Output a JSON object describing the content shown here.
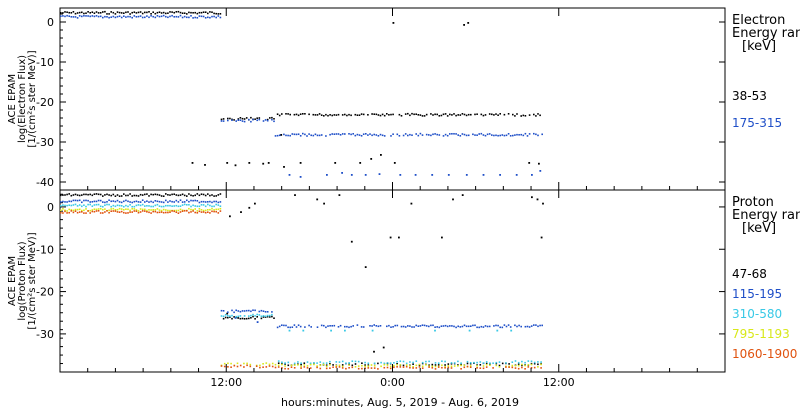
{
  "x_axis": {
    "ticks": [
      "12:00",
      "0:00",
      "12:00"
    ],
    "label": "hours:minutes, Aug.  5, 2019 - Aug.  6, 2019"
  },
  "colors": {
    "black": "#000000",
    "blue": "#1f4fc8",
    "cyan": "#39c9e6",
    "yellow": "#d8e81a",
    "orange": "#e0520e",
    "green": "#2fb84a"
  },
  "chart_data": [
    {
      "type": "scatter",
      "panel": "electron",
      "ylabel": [
        "ACE EPAM",
        "log(Electron Flux)",
        "[1/(cm²s ster MeV)]"
      ],
      "ylim": [
        -42,
        3.5
      ],
      "xlim_hours": [
        0,
        48
      ],
      "yticks": [
        "0",
        "-10",
        "-20",
        "-30",
        "-40"
      ],
      "ytick_values": [
        0,
        -10,
        -20,
        -30,
        -40
      ],
      "legend_title": [
        "Electron",
        "Energy ran",
        "[keV]"
      ],
      "series": [
        {
          "name": "38-53",
          "color": "black",
          "segments": [
            {
              "x0": 0,
              "x1": 11.6,
              "y": 2.5
            },
            {
              "x0": 11.6,
              "x1": 15.5,
              "y": -24
            },
            {
              "x0": 15.5,
              "x1": 34.8,
              "y": -23
            }
          ],
          "points": [
            [
              9.5,
              -35
            ],
            [
              10.4,
              -35.5
            ],
            [
              12.0,
              -35
            ],
            [
              12.6,
              -35.6
            ],
            [
              13.6,
              -35
            ],
            [
              14.6,
              -35.2
            ],
            [
              15.0,
              -35
            ],
            [
              16.1,
              -36
            ],
            [
              17.3,
              -35
            ],
            [
              19.8,
              -35
            ],
            [
              21.6,
              -35
            ],
            [
              24.1,
              -35
            ],
            [
              24.0,
              0
            ],
            [
              29.1,
              -0.5
            ],
            [
              29.4,
              0
            ],
            [
              33.8,
              -35
            ],
            [
              34.5,
              -35.2
            ],
            [
              15.9,
              -28
            ],
            [
              22.4,
              -34
            ],
            [
              23.1,
              -33
            ]
          ]
        },
        {
          "name": "175-315",
          "color": "blue",
          "segments": [
            {
              "x0": 0,
              "x1": 11.6,
              "y": 1.5
            },
            {
              "x0": 11.6,
              "x1": 15.5,
              "y": -24.5
            },
            {
              "x0": 15.5,
              "x1": 34.8,
              "y": -28
            }
          ],
          "points": [
            [
              16.5,
              -38
            ],
            [
              17.3,
              -38.5
            ],
            [
              19.2,
              -38
            ],
            [
              20.3,
              -37.5
            ],
            [
              21.0,
              -38
            ],
            [
              22.0,
              -38
            ],
            [
              23.0,
              -37.8
            ],
            [
              24.5,
              -38
            ],
            [
              25.6,
              -38
            ],
            [
              26.8,
              -38
            ],
            [
              28.0,
              -38
            ],
            [
              29.3,
              -38
            ],
            [
              30.5,
              -38
            ],
            [
              31.7,
              -38
            ],
            [
              32.9,
              -38
            ],
            [
              34.0,
              -38
            ],
            [
              34.6,
              -37
            ]
          ]
        }
      ]
    },
    {
      "type": "scatter",
      "panel": "proton",
      "ylabel": [
        "ACE EPAM",
        "log(Proton Flux)",
        "[1/(cm²s ster MeV)]"
      ],
      "ylim": [
        -39,
        4
      ],
      "xlim_hours": [
        0,
        48
      ],
      "yticks": [
        "0",
        "-10",
        "-20",
        "-30"
      ],
      "ytick_values": [
        0,
        -10,
        -20,
        -30
      ],
      "legend_title": [
        "Proton",
        "Energy ran",
        "[keV]"
      ],
      "series": [
        {
          "name": "47-68",
          "color": "black",
          "segments": [
            {
              "x0": 0,
              "x1": 11.6,
              "y": 3
            },
            {
              "x0": 11.6,
              "x1": 15.5,
              "y": -26
            },
            {
              "x0": 15.5,
              "x1": 34.8,
              "y": -37
            }
          ],
          "points": [
            [
              12.0,
              -25
            ],
            [
              12.8,
              -26
            ],
            [
              12.2,
              -2
            ],
            [
              13.0,
              -1
            ],
            [
              13.6,
              0
            ],
            [
              14.0,
              1
            ],
            [
              16.9,
              3
            ],
            [
              18.5,
              2
            ],
            [
              19.0,
              1
            ],
            [
              20.1,
              3
            ],
            [
              21.0,
              -8
            ],
            [
              22.0,
              -14
            ],
            [
              22.6,
              -34
            ],
            [
              23.8,
              -7
            ],
            [
              24.4,
              -7
            ],
            [
              25.3,
              1
            ],
            [
              27.5,
              -7
            ],
            [
              28.3,
              2
            ],
            [
              29.0,
              3
            ],
            [
              34.0,
              2.5
            ],
            [
              34.4,
              2
            ],
            [
              34.8,
              1
            ],
            [
              34.7,
              -7
            ],
            [
              23.3,
              -33
            ]
          ]
        },
        {
          "name": "115-195",
          "color": "blue",
          "segments": [
            {
              "x0": 0,
              "x1": 11.6,
              "y": 1.5
            },
            {
              "x0": 11.6,
              "x1": 15.5,
              "y": -24.5
            },
            {
              "x0": 15.5,
              "x1": 34.8,
              "y": -28
            }
          ],
          "points": [
            [
              12.6,
              -26
            ],
            [
              14.2,
              -27
            ]
          ]
        },
        {
          "name": "310-580",
          "color": "cyan",
          "segments": [
            {
              "x0": 0,
              "x1": 11.6,
              "y": 0.5
            },
            {
              "x0": 11.6,
              "x1": 15.5,
              "y": -25.5
            },
            {
              "x0": 15.5,
              "x1": 34.8,
              "y": -36.5
            }
          ],
          "points": [
            [
              16.5,
              -29
            ],
            [
              17.5,
              -29
            ],
            [
              19.5,
              -29
            ],
            [
              20.5,
              -29
            ],
            [
              22.5,
              -29
            ],
            [
              27.0,
              -29
            ],
            [
              29.5,
              -29
            ],
            [
              31.5,
              -29
            ],
            [
              32.5,
              -29
            ]
          ]
        },
        {
          "name": "795-1193",
          "color": "yellow",
          "segments": [
            {
              "x0": 0,
              "x1": 11.6,
              "y": -0.5
            },
            {
              "x0": 11.6,
              "x1": 15.5,
              "y": -37
            },
            {
              "x0": 15.5,
              "x1": 34.8,
              "y": -37.3
            }
          ],
          "points": []
        },
        {
          "name": "1060-1900",
          "color": "orange",
          "segments": [
            {
              "x0": 0,
              "x1": 11.6,
              "y": -1
            },
            {
              "x0": 11.6,
              "x1": 15.5,
              "y": -37.5
            },
            {
              "x0": 15.5,
              "x1": 34.8,
              "y": -37.8
            }
          ],
          "points": []
        }
      ]
    }
  ]
}
